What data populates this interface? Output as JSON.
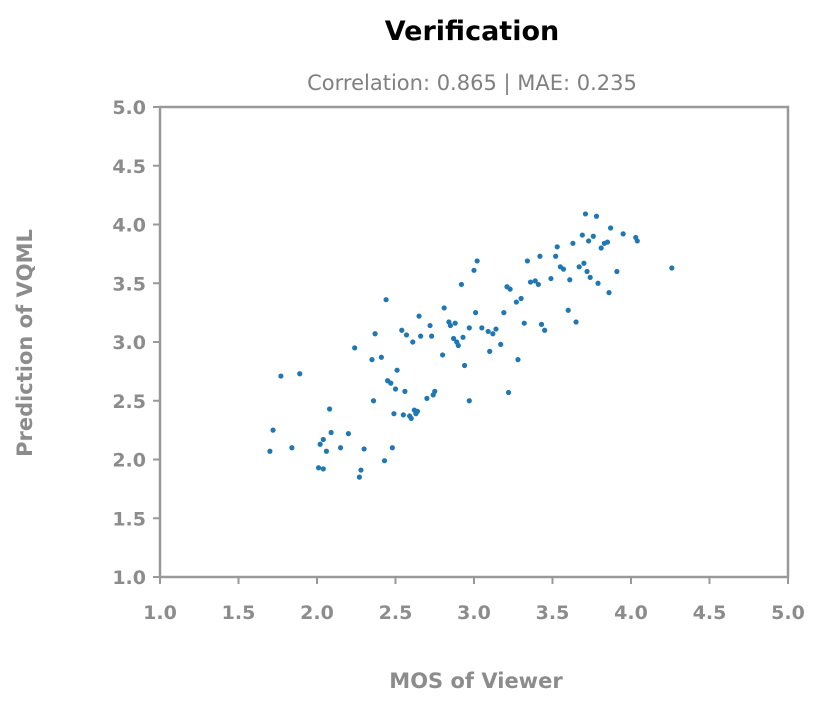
{
  "chart_data": {
    "type": "scatter",
    "title": "Verification",
    "subtitle": "Correlation: 0.865   |   MAE: 0.235",
    "xlabel": "MOS of Viewer",
    "ylabel": "Prediction of VQML",
    "xlim": [
      1.0,
      5.0
    ],
    "ylim": [
      1.0,
      5.0
    ],
    "xticks": [
      "1.0",
      "1.5",
      "2.0",
      "2.5",
      "3.0",
      "3.5",
      "4.0",
      "4.5",
      "5.0"
    ],
    "yticks": [
      "1.0",
      "1.5",
      "2.0",
      "2.5",
      "3.0",
      "3.5",
      "4.0",
      "4.5",
      "5.0"
    ],
    "grid": false,
    "point_color": "#1f77b4",
    "axis_color": "#999999",
    "x": [
      1.7,
      1.72,
      1.77,
      1.84,
      1.89,
      2.01,
      2.02,
      2.04,
      2.04,
      2.06,
      2.08,
      2.09,
      2.15,
      2.2,
      2.24,
      2.27,
      2.28,
      2.3,
      2.35,
      2.36,
      2.37,
      2.41,
      2.43,
      2.44,
      2.45,
      2.47,
      2.48,
      2.49,
      2.5,
      2.51,
      2.54,
      2.55,
      2.56,
      2.57,
      2.59,
      2.6,
      2.61,
      2.62,
      2.63,
      2.64,
      2.65,
      2.66,
      2.7,
      2.72,
      2.73,
      2.74,
      2.75,
      2.8,
      2.81,
      2.84,
      2.85,
      2.87,
      2.88,
      2.89,
      2.9,
      2.92,
      2.93,
      2.94,
      2.97,
      2.97,
      3.0,
      3.01,
      3.02,
      3.05,
      3.09,
      3.1,
      3.12,
      3.14,
      3.17,
      3.19,
      3.21,
      3.22,
      3.23,
      3.27,
      3.28,
      3.3,
      3.32,
      3.34,
      3.36,
      3.39,
      3.41,
      3.42,
      3.43,
      3.45,
      3.49,
      3.52,
      3.53,
      3.55,
      3.57,
      3.6,
      3.61,
      3.63,
      3.65,
      3.67,
      3.69,
      3.7,
      3.71,
      3.72,
      3.73,
      3.74,
      3.76,
      3.78,
      3.79,
      3.81,
      3.83,
      3.85,
      3.86,
      3.87,
      3.91,
      3.95,
      4.03,
      4.04,
      4.26
    ],
    "y": [
      2.07,
      2.25,
      2.71,
      2.1,
      2.73,
      1.93,
      2.13,
      1.92,
      2.17,
      2.07,
      2.43,
      2.23,
      2.1,
      2.22,
      2.95,
      1.85,
      1.91,
      2.09,
      2.85,
      2.5,
      3.07,
      2.87,
      1.99,
      3.36,
      2.67,
      2.65,
      2.1,
      2.39,
      2.6,
      2.76,
      3.1,
      2.38,
      2.58,
      3.06,
      2.37,
      2.35,
      3.0,
      2.42,
      2.39,
      2.41,
      3.22,
      3.05,
      2.52,
      3.14,
      3.05,
      2.55,
      2.58,
      2.89,
      3.29,
      3.17,
      3.14,
      3.03,
      3.16,
      3.0,
      2.97,
      3.49,
      3.04,
      2.8,
      3.12,
      2.5,
      3.61,
      3.25,
      3.69,
      3.12,
      3.09,
      2.92,
      3.07,
      3.11,
      2.98,
      3.25,
      3.47,
      2.57,
      3.45,
      3.34,
      2.85,
      3.37,
      3.16,
      3.69,
      3.51,
      3.52,
      3.49,
      3.73,
      3.15,
      3.1,
      3.54,
      3.73,
      3.81,
      3.64,
      3.62,
      3.27,
      3.53,
      3.84,
      3.17,
      3.64,
      3.91,
      3.67,
      4.09,
      3.6,
      3.86,
      3.55,
      3.9,
      4.07,
      3.5,
      3.8,
      3.84,
      3.85,
      3.42,
      3.97,
      3.6,
      3.92,
      3.89,
      3.86,
      3.63
    ]
  }
}
